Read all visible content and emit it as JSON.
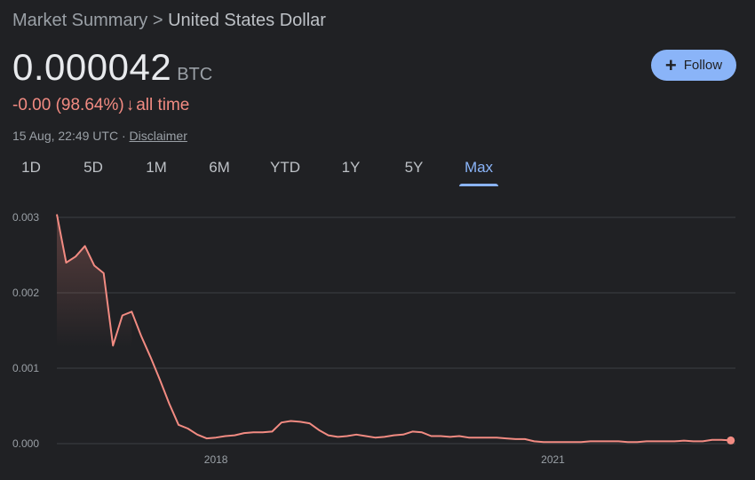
{
  "breadcrumb": {
    "parent": "Market Summary",
    "separator": ">",
    "current": "United States Dollar"
  },
  "price": {
    "value": "0.000042",
    "unit": "BTC"
  },
  "change": {
    "text": "-0.00 (98.64%)",
    "arrow": "↓",
    "period": "all time"
  },
  "meta": {
    "timestamp": "15 Aug, 22:49 UTC",
    "separator": "·",
    "disclaimer": "Disclaimer"
  },
  "follow": {
    "icon": "plus-icon",
    "label": "Follow"
  },
  "tabs": [
    "1D",
    "5D",
    "1M",
    "6M",
    "YTD",
    "1Y",
    "5Y",
    "Max"
  ],
  "active_tab": "Max",
  "colors": {
    "background": "#202124",
    "line": "#f28b82",
    "accent": "#8ab4f8",
    "grid": "#3c4043"
  },
  "chart_data": {
    "type": "line",
    "title": "",
    "xlabel": "",
    "ylabel": "",
    "yticks": [
      "0.003",
      "0.002",
      "0.001",
      "0.000"
    ],
    "ylim": [
      0,
      0.003
    ],
    "xticks": [
      "2018",
      "2021"
    ],
    "grid": true,
    "series": [
      {
        "x": [
          "2016-08",
          "2016-09",
          "2016-10",
          "2016-11",
          "2016-12",
          "2017-01",
          "2017-02",
          "2017-03",
          "2017-04",
          "2017-05",
          "2017-06",
          "2017-07",
          "2017-08",
          "2017-09",
          "2017-10",
          "2017-11",
          "2017-12",
          "2018-01",
          "2018-02",
          "2018-03",
          "2018-04",
          "2018-05",
          "2018-06",
          "2018-07",
          "2018-08",
          "2018-09",
          "2018-10",
          "2018-11",
          "2018-12",
          "2019-01",
          "2019-02",
          "2019-03",
          "2019-04",
          "2019-05",
          "2019-06",
          "2019-07",
          "2019-08",
          "2019-09",
          "2019-10",
          "2019-11",
          "2019-12",
          "2020-01",
          "2020-02",
          "2020-03",
          "2020-04",
          "2020-05",
          "2020-06",
          "2020-07",
          "2020-08",
          "2020-09",
          "2020-10",
          "2020-11",
          "2020-12",
          "2021-01",
          "2021-02",
          "2021-03",
          "2021-04",
          "2021-05",
          "2021-06",
          "2021-07",
          "2021-08",
          "2021-09",
          "2021-10",
          "2021-11",
          "2021-12",
          "2022-01",
          "2022-02",
          "2022-03",
          "2022-04",
          "2022-05",
          "2022-06",
          "2022-07",
          "2022-08"
        ],
        "y": [
          0.00304,
          0.0024,
          0.00248,
          0.00262,
          0.00236,
          0.00226,
          0.0013,
          0.0017,
          0.00175,
          0.00143,
          0.00115,
          0.00085,
          0.00053,
          0.00025,
          0.0002,
          0.00012,
          7e-05,
          8e-05,
          0.0001,
          0.00011,
          0.00014,
          0.00015,
          0.00015,
          0.00016,
          0.00028,
          0.0003,
          0.00029,
          0.00027,
          0.00018,
          0.00011,
          9e-05,
          0.0001,
          0.00012,
          0.0001,
          8e-05,
          9e-05,
          0.00011,
          0.00012,
          0.00016,
          0.00015,
          0.0001,
          0.0001,
          9e-05,
          0.0001,
          8e-05,
          8e-05,
          8e-05,
          8e-05,
          7e-05,
          6e-05,
          6e-05,
          3e-05,
          2e-05,
          2e-05,
          2e-05,
          2e-05,
          2e-05,
          3e-05,
          3e-05,
          3e-05,
          3e-05,
          2e-05,
          2e-05,
          3e-05,
          3e-05,
          3e-05,
          3e-05,
          4e-05,
          3e-05,
          3e-05,
          5e-05,
          5e-05,
          4.2e-05
        ]
      }
    ]
  }
}
